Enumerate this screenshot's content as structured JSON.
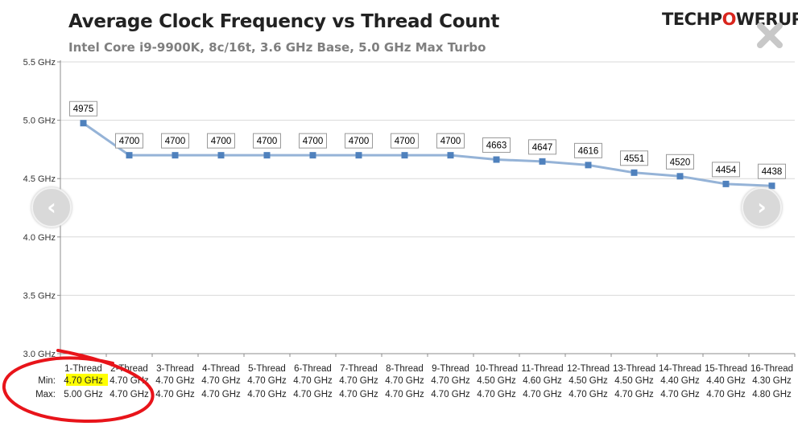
{
  "header": {
    "title": "Average Clock Frequency vs Thread Count",
    "subtitle": "Intel Core i9-9900K, 8c/16t, 3.6 GHz Base, 5.0 GHz Max Turbo",
    "logo_pre": "TECHP",
    "logo_o": "O",
    "logo_post": "WERUP"
  },
  "controls": {
    "prev_icon": "‹",
    "next_icon": "›",
    "close_icon": "close-icon"
  },
  "colors": {
    "line": "#95b3d7",
    "marker": "#4f81bd",
    "annotation": "#e8141a",
    "highlight": "#ffff00"
  },
  "chart_data": {
    "type": "line",
    "title": "Average Clock Frequency vs Thread Count",
    "subtitle": "Intel Core i9-9900K, 8c/16t, 3.6 GHz Base, 5.0 GHz Max Turbo",
    "categories": [
      "1-Thread",
      "2-Thread",
      "3-Thread",
      "4-Thread",
      "5-Thread",
      "6-Thread",
      "7-Thread",
      "8-Thread",
      "9-Thread",
      "10-Thread",
      "11-Thread",
      "12-Thread",
      "13-Thread",
      "14-Thread",
      "15-Thread",
      "16-Thread"
    ],
    "series": [
      {
        "values": [
          4975,
          4700,
          4700,
          4700,
          4700,
          4700,
          4700,
          4700,
          4700,
          4663,
          4647,
          4616,
          4551,
          4520,
          4454,
          4438
        ]
      }
    ],
    "y_ticks": [
      "3.0 GHz",
      "3.5 GHz",
      "4.0 GHz",
      "4.5 GHz",
      "5.0 GHz",
      "5.5 GHz"
    ],
    "y_tick_values": [
      3000,
      3500,
      4000,
      4500,
      5000,
      5500
    ],
    "ylim": [
      3000,
      5500
    ],
    "grid": true,
    "table": {
      "min_label": "Min:",
      "max_label": "Max:",
      "min": [
        "4.70 GHz",
        "4.70 GHz",
        "4.70 GHz",
        "4.70 GHz",
        "4.70 GHz",
        "4.70 GHz",
        "4.70 GHz",
        "4.70 GHz",
        "4.70 GHz",
        "4.50 GHz",
        "4.60 GHz",
        "4.50 GHz",
        "4.50 GHz",
        "4.40 GHz",
        "4.40 GHz",
        "4.30 GHz"
      ],
      "max": [
        "5.00 GHz",
        "4.70 GHz",
        "4.70 GHz",
        "4.70 GHz",
        "4.70 GHz",
        "4.70 GHz",
        "4.70 GHz",
        "4.70 GHz",
        "4.70 GHz",
        "4.70 GHz",
        "4.70 GHz",
        "4.70 GHz",
        "4.70 GHz",
        "4.70 GHz",
        "4.70 GHz",
        "4.80 GHz"
      ]
    }
  }
}
